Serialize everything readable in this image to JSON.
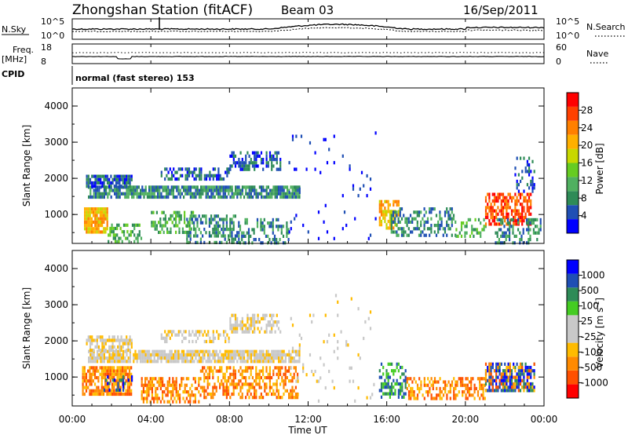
{
  "header": {
    "station": "Zhongshan Station (fitACF)",
    "beam": "Beam 03",
    "date": "16/Sep/2011"
  },
  "top_panels": {
    "nsky_label": "N.Sky",
    "nsky_ticks": [
      "10^5",
      "10^0"
    ],
    "nsearch_label": "N.Search",
    "nsearch_ticks": [
      "10^5",
      "10^0"
    ],
    "freq_label": "Freq.",
    "freq_unit": "[MHz]",
    "freq_ticks": [
      "18",
      "8"
    ],
    "nave_label": "Nave",
    "nave_ticks": [
      "60",
      "0"
    ],
    "cpid_label": "CPID",
    "cpid_text": "normal (fast stereo) 153"
  },
  "colors": {
    "power": [
      "#0000ff",
      "#1f4fb4",
      "#2e8b57",
      "#50b060",
      "#66cc22",
      "#c8d800",
      "#ffb000",
      "#ff8000",
      "#ff4000",
      "#ff0000"
    ],
    "velocity": [
      "#ff0000",
      "#ff5000",
      "#ff8a00",
      "#ffbb00",
      "#c8c8c8",
      "#c8c8c8",
      "#44cc22",
      "#2e8b57",
      "#1f4fb4",
      "#0000ff"
    ]
  },
  "chart_data": [
    {
      "type": "heatmap",
      "name": "power",
      "ylabel": "Slant Range [km]",
      "yticks": [
        "4000",
        "3000",
        "2000",
        "1000"
      ],
      "ylim": [
        200,
        4500
      ],
      "xlim": [
        0,
        24
      ],
      "colorbar_label": "Power [dB]",
      "colorbar_ticks": [
        "28",
        "24",
        "20",
        "16",
        "12",
        "8",
        "4"
      ],
      "colorbar_range": [
        0,
        30
      ],
      "blobs": [
        {
          "t": [
            0.8,
            11.6
          ],
          "r": [
            1450,
            1800
          ],
          "c": 2,
          "d": 0.8
        },
        {
          "t": [
            0.7,
            3.0
          ],
          "r": [
            1800,
            2100
          ],
          "c": 1,
          "d": 0.8
        },
        {
          "t": [
            4.5,
            8.0
          ],
          "r": [
            1950,
            2300
          ],
          "c": 1,
          "d": 0.55
        },
        {
          "t": [
            8.0,
            10.6
          ],
          "r": [
            2250,
            2750
          ],
          "c": 1,
          "d": 0.6
        },
        {
          "t": [
            0.6,
            1.8
          ],
          "r": [
            500,
            1200
          ],
          "c": 6,
          "d": 0.9
        },
        {
          "t": [
            1.8,
            3.5
          ],
          "r": [
            250,
            750
          ],
          "c": 3,
          "d": 0.35
        },
        {
          "t": [
            4.0,
            6.2
          ],
          "r": [
            500,
            1100
          ],
          "c": 3,
          "d": 0.5
        },
        {
          "t": [
            5.8,
            8.5
          ],
          "r": [
            250,
            1000
          ],
          "c": 2,
          "d": 0.45
        },
        {
          "t": [
            8.5,
            11.0
          ],
          "r": [
            250,
            900
          ],
          "c": 2,
          "d": 0.35
        },
        {
          "t": [
            15.6,
            16.6
          ],
          "r": [
            600,
            1400
          ],
          "c": 6,
          "d": 0.6
        },
        {
          "t": [
            16.2,
            19.5
          ],
          "r": [
            400,
            1200
          ],
          "c": 2,
          "d": 0.45
        },
        {
          "t": [
            19.5,
            21.0
          ],
          "r": [
            400,
            900
          ],
          "c": 3,
          "d": 0.35
        },
        {
          "t": [
            21.0,
            23.3
          ],
          "r": [
            700,
            1600
          ],
          "c": 8,
          "d": 0.65
        },
        {
          "t": [
            21.5,
            23.8
          ],
          "r": [
            250,
            900
          ],
          "c": 2,
          "d": 0.4
        },
        {
          "t": [
            22.5,
            23.5
          ],
          "r": [
            1600,
            2600
          ],
          "c": 1,
          "d": 0.3
        },
        {
          "t": [
            11.0,
            15.5
          ],
          "r": [
            300,
            3300
          ],
          "c": 0,
          "d": 0.03
        }
      ]
    },
    {
      "type": "heatmap",
      "name": "velocity",
      "ylabel": "Slant Range [km]",
      "yticks": [
        "4000",
        "3000",
        "2000",
        "1000"
      ],
      "ylim": [
        200,
        4500
      ],
      "xlim": [
        0,
        24
      ],
      "colorbar_label": "Velocity [m s",
      "colorbar_unit_exp": "-1",
      "colorbar_label_end": "]",
      "colorbar_ticks": [
        "1000",
        "500",
        "100",
        "25",
        "-25",
        "-100",
        "-500",
        "-1000"
      ],
      "blobs": [
        {
          "t": [
            0.8,
            11.6
          ],
          "r": [
            1450,
            1750
          ],
          "c": 4,
          "d": 0.85
        },
        {
          "t": [
            0.7,
            3.0
          ],
          "r": [
            1750,
            2150
          ],
          "c": 4,
          "d": 0.6
        },
        {
          "t": [
            4.5,
            8.0
          ],
          "r": [
            1950,
            2300
          ],
          "c": 4,
          "d": 0.5
        },
        {
          "t": [
            8.0,
            10.6
          ],
          "r": [
            2250,
            2750
          ],
          "c": 4,
          "d": 0.6
        },
        {
          "t": [
            0.5,
            3.0
          ],
          "r": [
            500,
            1300
          ],
          "c": 2,
          "d": 0.8
        },
        {
          "t": [
            1.5,
            3.0
          ],
          "r": [
            650,
            1050
          ],
          "c": 8,
          "d": 0.3
        },
        {
          "t": [
            3.5,
            6.5
          ],
          "r": [
            300,
            1000
          ],
          "c": 2,
          "d": 0.55
        },
        {
          "t": [
            6.5,
            11.5
          ],
          "r": [
            400,
            1300
          ],
          "c": 2,
          "d": 0.5
        },
        {
          "t": [
            15.6,
            17.0
          ],
          "r": [
            400,
            1400
          ],
          "c": 7,
          "d": 0.5
        },
        {
          "t": [
            17.0,
            21.0
          ],
          "r": [
            400,
            1000
          ],
          "c": 2,
          "d": 0.5
        },
        {
          "t": [
            21.0,
            23.5
          ],
          "r": [
            600,
            1400
          ],
          "c": 8,
          "d": 0.6
        },
        {
          "t": [
            21.0,
            23.5
          ],
          "r": [
            600,
            1400
          ],
          "c": 2,
          "d": 0.3
        },
        {
          "t": [
            11.0,
            15.5
          ],
          "r": [
            300,
            3300
          ],
          "c": 4,
          "d": 0.03
        }
      ]
    }
  ],
  "xaxis": {
    "ticks": [
      "00:00",
      "04:00",
      "08:00",
      "12:00",
      "16:00",
      "20:00",
      "00:00"
    ],
    "label": "Time UT"
  }
}
